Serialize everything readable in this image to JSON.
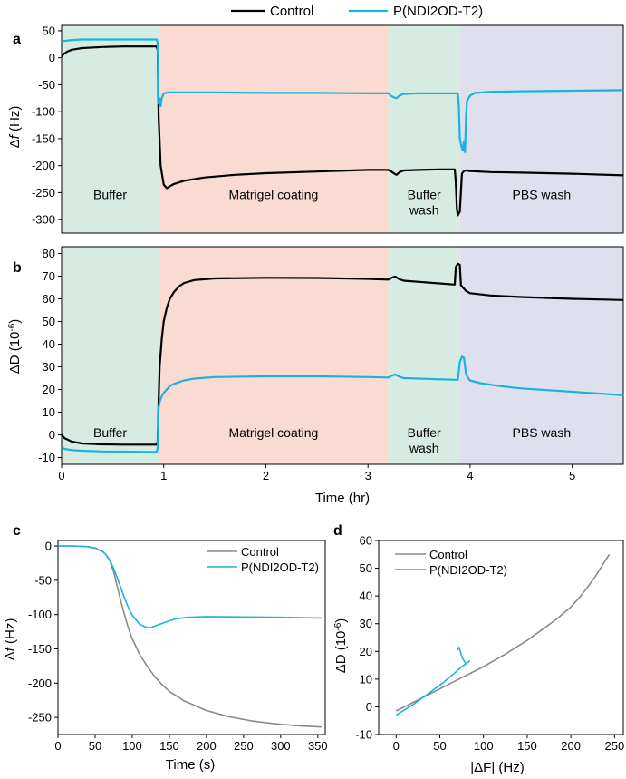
{
  "legend_top": {
    "control": "Control",
    "polymer": "P(NDI2OD-T2)"
  },
  "colors": {
    "control": "#000000",
    "polymer": "#1ab2e0",
    "control_gray": "#8a8a8a",
    "buffer_bg": "#d6ece2",
    "matrigel_bg": "#f9dbd2",
    "buffer_wash_bg": "#d6ece2",
    "pbs_bg": "#dee1ed"
  },
  "chart_data": [
    {
      "id": "a",
      "panel_label": "a",
      "type": "line",
      "title": "",
      "xlabel": "",
      "ylabel": "Δf (Hz)",
      "ylabel_parts": {
        "pre": "Δ",
        "italic": "f",
        "post": " (Hz)"
      },
      "xlim": [
        0,
        5.5
      ],
      "ylim": [
        -325,
        60
      ],
      "yticks": [
        50,
        0,
        -50,
        -100,
        -150,
        -200,
        -250,
        -300
      ],
      "ytick_labels": [
        "50",
        "0",
        "-50",
        "-100",
        "-150",
        "-200",
        "-250",
        "-300"
      ],
      "regions": [
        {
          "label": "Buffer",
          "lines": [
            "Buffer"
          ],
          "from": 0,
          "to": 0.95
        },
        {
          "label": "Matrigel coating",
          "lines": [
            "Matrigel coating"
          ],
          "from": 0.95,
          "to": 3.2
        },
        {
          "label": "Buffer wash",
          "lines": [
            "Buffer",
            "wash"
          ],
          "from": 3.2,
          "to": 3.9
        },
        {
          "label": "PBS wash",
          "lines": [
            "PBS wash"
          ],
          "from": 3.9,
          "to": 5.5
        }
      ],
      "region_label_y": -262,
      "series": [
        {
          "name": "Control",
          "x": [
            0,
            0.02,
            0.06,
            0.1,
            0.2,
            0.4,
            0.6,
            0.8,
            0.93,
            0.94,
            0.95,
            0.97,
            1.0,
            1.03,
            1.06,
            1.1,
            1.2,
            1.4,
            1.7,
            2.0,
            2.5,
            3.0,
            3.2,
            3.22,
            3.26,
            3.28,
            3.31,
            3.35,
            3.5,
            3.7,
            3.85,
            3.86,
            3.87,
            3.88,
            3.9,
            3.92,
            3.94,
            3.96,
            4.0,
            4.2,
            4.5,
            5.0,
            5.5
          ],
          "y": [
            2,
            7,
            12,
            15,
            18,
            20,
            21,
            21,
            21,
            15,
            -110,
            -200,
            -235,
            -242,
            -238,
            -234,
            -228,
            -222,
            -217,
            -214,
            -211,
            -208,
            -208,
            -210,
            -215,
            -217,
            -212,
            -209,
            -208,
            -207,
            -207,
            -230,
            -280,
            -292,
            -285,
            -215,
            -210,
            -209,
            -210,
            -212,
            -213,
            -215,
            -218
          ]
        },
        {
          "name": "P(NDI2OD-T2)",
          "x": [
            0,
            0.02,
            0.1,
            0.2,
            0.4,
            0.6,
            0.8,
            0.93,
            0.94,
            0.95,
            0.96,
            0.97,
            0.98,
            1.0,
            1.05,
            1.2,
            1.5,
            2.0,
            2.5,
            3.0,
            3.2,
            3.22,
            3.26,
            3.28,
            3.31,
            3.35,
            3.5,
            3.7,
            3.88,
            3.89,
            3.9,
            3.92,
            3.93,
            3.94,
            3.95,
            3.96,
            3.97,
            4.0,
            4.05,
            4.2,
            4.5,
            5.0,
            5.5
          ],
          "y": [
            29,
            31,
            33,
            34,
            34,
            34,
            34,
            34,
            28,
            -85,
            -75,
            -90,
            -75,
            -66,
            -64,
            -64,
            -64,
            -65,
            -65,
            -66,
            -66,
            -70,
            -74,
            -75,
            -70,
            -67,
            -66,
            -66,
            -66,
            -90,
            -150,
            -168,
            -172,
            -155,
            -175,
            -110,
            -80,
            -70,
            -65,
            -63,
            -62,
            -61,
            -60
          ]
        }
      ]
    },
    {
      "id": "b",
      "panel_label": "b",
      "type": "line",
      "title": "",
      "xlabel": "Time (hr)",
      "ylabel": "ΔD (10⁻⁶)",
      "ylabel_parts": {
        "pre": "ΔD (10",
        "sup": "-6",
        "post": ")"
      },
      "xlim": [
        0,
        5.5
      ],
      "xticks": [
        0,
        1,
        2,
        3,
        4,
        5
      ],
      "xtick_labels": [
        "0",
        "1",
        "2",
        "3",
        "4",
        "5"
      ],
      "ylim": [
        -13,
        83
      ],
      "yticks": [
        80,
        70,
        60,
        50,
        40,
        30,
        20,
        10,
        0,
        -10
      ],
      "ytick_labels": [
        "80",
        "70",
        "60",
        "50",
        "40",
        "30",
        "20",
        "10",
        "0",
        "-10"
      ],
      "regions": [
        {
          "label": "Buffer",
          "lines": [
            "Buffer"
          ],
          "from": 0,
          "to": 0.95
        },
        {
          "label": "Matrigel coating",
          "lines": [
            "Matrigel coating"
          ],
          "from": 0.95,
          "to": 3.2
        },
        {
          "label": "Buffer wash",
          "lines": [
            "Buffer",
            "wash"
          ],
          "from": 3.2,
          "to": 3.9
        },
        {
          "label": "PBS wash",
          "lines": [
            "PBS wash"
          ],
          "from": 3.9,
          "to": 5.5
        }
      ],
      "region_label_y": -1,
      "series": [
        {
          "name": "Control",
          "x": [
            0,
            0.03,
            0.1,
            0.2,
            0.4,
            0.6,
            0.8,
            0.93,
            0.94,
            0.95,
            0.96,
            0.98,
            1.0,
            1.03,
            1.06,
            1.1,
            1.15,
            1.2,
            1.3,
            1.5,
            2.0,
            2.5,
            3.0,
            3.2,
            3.24,
            3.27,
            3.3,
            3.35,
            3.5,
            3.7,
            3.85,
            3.86,
            3.88,
            3.9,
            3.91,
            3.93,
            3.96,
            4.0,
            4.2,
            4.5,
            5.0,
            5.5
          ],
          "y": [
            0,
            -1.5,
            -3,
            -3.8,
            -4.2,
            -4.3,
            -4.3,
            -4.3,
            -3,
            15,
            30,
            42,
            50,
            56,
            60,
            63,
            65.5,
            67,
            68.3,
            69,
            69.3,
            69.2,
            68.8,
            68.5,
            69.5,
            69.8,
            68.8,
            68,
            67.5,
            66.8,
            66.3,
            74,
            75.5,
            75,
            66,
            65,
            63.5,
            62.5,
            61.5,
            60.8,
            60,
            59.5
          ]
        },
        {
          "name": "P(NDI2OD-T2)",
          "x": [
            0,
            0.03,
            0.1,
            0.2,
            0.4,
            0.6,
            0.8,
            0.93,
            0.94,
            0.95,
            0.96,
            0.98,
            1.0,
            1.03,
            1.06,
            1.1,
            1.2,
            1.3,
            1.5,
            2.0,
            2.5,
            3.0,
            3.2,
            3.24,
            3.27,
            3.3,
            3.35,
            3.5,
            3.7,
            3.88,
            3.9,
            3.92,
            3.94,
            3.96,
            3.98,
            4.0,
            4.1,
            4.3,
            4.5,
            5.0,
            5.5
          ],
          "y": [
            -5.5,
            -6.2,
            -6.7,
            -7,
            -7.3,
            -7.4,
            -7.5,
            -7.5,
            -6,
            12,
            14.5,
            17,
            18.5,
            20,
            21.5,
            22.5,
            24,
            24.8,
            25.5,
            25.8,
            25.8,
            25.5,
            25.3,
            26.3,
            26.6,
            25.8,
            25,
            24.8,
            24.5,
            24.3,
            32,
            34.5,
            34,
            27,
            25,
            24,
            22.8,
            21.5,
            20.5,
            19,
            17.5
          ]
        }
      ]
    },
    {
      "id": "c",
      "panel_label": "c",
      "type": "line",
      "title": "",
      "xlabel": "Time (s)",
      "ylabel": "Δf (Hz)",
      "ylabel_parts": {
        "pre": "Δ",
        "italic": "f",
        "post": " (Hz)"
      },
      "xlim": [
        0,
        360
      ],
      "xticks": [
        0,
        50,
        100,
        150,
        200,
        250,
        300,
        350
      ],
      "xtick_labels": [
        "0",
        "50",
        "100",
        "150",
        "200",
        "250",
        "300",
        "350"
      ],
      "ylim": [
        -275,
        8
      ],
      "yticks": [
        0,
        -50,
        -100,
        -150,
        -200,
        -250
      ],
      "ytick_labels": [
        "0",
        "-50",
        "-100",
        "-150",
        "-200",
        "-250"
      ],
      "legend": [
        "Control",
        "P(NDI2OD-T2)"
      ],
      "legend_position": "top-right",
      "series": [
        {
          "name": "Control",
          "x": [
            0,
            20,
            40,
            50,
            60,
            65,
            70,
            75,
            80,
            85,
            90,
            95,
            100,
            110,
            120,
            130,
            140,
            150,
            170,
            200,
            230,
            260,
            290,
            320,
            355
          ],
          "y": [
            0,
            0,
            -1,
            -3,
            -8,
            -13,
            -22,
            -38,
            -60,
            -82,
            -102,
            -120,
            -135,
            -158,
            -175,
            -190,
            -202,
            -212,
            -226,
            -240,
            -249,
            -255,
            -259,
            -262,
            -264
          ]
        },
        {
          "name": "P(NDI2OD-T2)",
          "x": [
            0,
            20,
            40,
            50,
            60,
            65,
            70,
            75,
            80,
            85,
            90,
            95,
            100,
            110,
            120,
            125,
            130,
            140,
            150,
            160,
            175,
            200,
            250,
            300,
            355
          ],
          "y": [
            0,
            0,
            -1,
            -3,
            -8,
            -13,
            -21,
            -33,
            -47,
            -62,
            -77,
            -90,
            -101,
            -114,
            -119,
            -119,
            -117,
            -113,
            -109,
            -106,
            -104,
            -103,
            -103.5,
            -104,
            -105
          ]
        }
      ]
    },
    {
      "id": "d",
      "panel_label": "d",
      "type": "line",
      "title": "",
      "xlabel": "|ΔF| (Hz)",
      "ylabel": "ΔD (10⁻⁶)",
      "ylabel_parts": {
        "pre": "ΔD (10",
        "sup": "-6",
        "post": ")"
      },
      "xlim": [
        -20,
        260
      ],
      "xticks": [
        0,
        50,
        100,
        150,
        200,
        250
      ],
      "xtick_labels": [
        "0",
        "50",
        "100",
        "150",
        "200",
        "250"
      ],
      "ylim": [
        -10,
        60
      ],
      "yticks": [
        60,
        50,
        40,
        30,
        20,
        10,
        0,
        -10
      ],
      "ytick_labels": [
        "60",
        "50",
        "40",
        "30",
        "20",
        "10",
        "0",
        "-10"
      ],
      "legend": [
        "Control",
        "P(NDI2OD-T2)"
      ],
      "legend_position": "top-left",
      "series": [
        {
          "name": "Control",
          "x": [
            0,
            25,
            50,
            75,
            100,
            125,
            150,
            170,
            185,
            200,
            210,
            220,
            228,
            235,
            240,
            244
          ],
          "y": [
            -1.5,
            2.5,
            6.5,
            10.5,
            14.5,
            19,
            24,
            28.5,
            32,
            36,
            39.5,
            43.5,
            47,
            50.5,
            53,
            55
          ]
        },
        {
          "name": "P(NDI2OD-T2)",
          "x": [
            0,
            20,
            40,
            55,
            68,
            75,
            80,
            84,
            80,
            76,
            74,
            72,
            70
          ],
          "y": [
            -3,
            1,
            5.5,
            9,
            12.5,
            14.5,
            15.5,
            16.5,
            15.5,
            17.5,
            19.5,
            21.5,
            20.5
          ]
        }
      ]
    }
  ]
}
